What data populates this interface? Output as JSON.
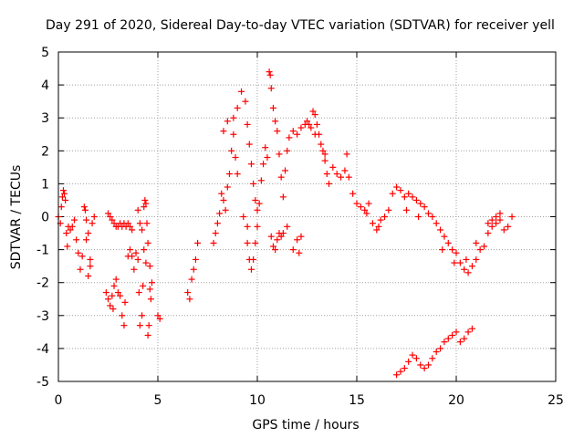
{
  "chart_data": {
    "type": "scatter",
    "title": "Day 291 of 2020, Sidereal Day-to-day VTEC variation (SDTVAR) for receiver yell",
    "xlabel": "GPS time / hours",
    "ylabel": "SDTVAR / TECUs",
    "xlim": [
      0,
      25
    ],
    "ylim": [
      -5,
      5
    ],
    "xticks": [
      0,
      5,
      10,
      15,
      20,
      25
    ],
    "yticks": [
      -5,
      -4,
      -3,
      -2,
      -1,
      0,
      1,
      2,
      3,
      4,
      5
    ],
    "xtick_labels": [
      "0",
      "5",
      "10",
      "15",
      "20",
      "25"
    ],
    "ytick_labels": [
      "-5",
      "-4",
      "-3",
      "-2",
      "-1",
      "0",
      "1",
      "2",
      "3",
      "4",
      "5"
    ],
    "grid": true,
    "marker": "+",
    "series": [
      {
        "name": "SDTVAR",
        "color": "#ff0000",
        "points": [
          [
            0.0,
            0.0
          ],
          [
            0.1,
            -0.2
          ],
          [
            0.15,
            0.3
          ],
          [
            0.2,
            0.6
          ],
          [
            0.25,
            0.8
          ],
          [
            0.3,
            0.7
          ],
          [
            0.35,
            0.5
          ],
          [
            0.4,
            -0.5
          ],
          [
            0.45,
            -0.9
          ],
          [
            0.5,
            -0.3
          ],
          [
            0.6,
            -0.4
          ],
          [
            0.7,
            -0.3
          ],
          [
            0.8,
            -0.1
          ],
          [
            0.9,
            -0.7
          ],
          [
            1.0,
            -1.1
          ],
          [
            1.1,
            -1.6
          ],
          [
            1.2,
            -1.2
          ],
          [
            1.3,
            0.3
          ],
          [
            1.35,
            0.2
          ],
          [
            1.4,
            -0.1
          ],
          [
            1.5,
            -0.5
          ],
          [
            1.6,
            -1.3
          ],
          [
            1.7,
            -0.2
          ],
          [
            1.8,
            0.0
          ],
          [
            2.4,
            -2.3
          ],
          [
            2.5,
            -2.5
          ],
          [
            2.6,
            -2.7
          ],
          [
            2.7,
            -2.4
          ],
          [
            2.75,
            -2.8
          ],
          [
            2.8,
            -2.1
          ],
          [
            2.9,
            -1.9
          ],
          [
            3.0,
            -2.3
          ],
          [
            3.1,
            -2.4
          ],
          [
            3.2,
            -3.0
          ],
          [
            3.3,
            -3.3
          ],
          [
            3.35,
            -2.6
          ],
          [
            2.5,
            0.1
          ],
          [
            2.6,
            0.0
          ],
          [
            2.7,
            -0.1
          ],
          [
            2.8,
            -0.2
          ],
          [
            2.9,
            -0.3
          ],
          [
            3.0,
            -0.3
          ],
          [
            3.1,
            -0.2
          ],
          [
            3.2,
            -0.3
          ],
          [
            3.3,
            -0.2
          ],
          [
            3.4,
            -0.3
          ],
          [
            3.5,
            -0.2
          ],
          [
            3.6,
            -0.3
          ],
          [
            3.7,
            -0.4
          ],
          [
            3.5,
            -1.2
          ],
          [
            3.6,
            -1.0
          ],
          [
            3.7,
            -1.2
          ],
          [
            3.8,
            -1.6
          ],
          [
            3.9,
            -1.1
          ],
          [
            4.0,
            -1.3
          ],
          [
            4.05,
            -2.3
          ],
          [
            4.1,
            -3.3
          ],
          [
            4.2,
            -3.0
          ],
          [
            4.25,
            -2.1
          ],
          [
            4.3,
            0.3
          ],
          [
            4.35,
            0.5
          ],
          [
            4.4,
            0.4
          ],
          [
            4.45,
            -0.2
          ],
          [
            4.5,
            -0.8
          ],
          [
            4.5,
            -3.6
          ],
          [
            4.55,
            -3.3
          ],
          [
            4.6,
            -1.5
          ],
          [
            4.65,
            -2.5
          ],
          [
            4.7,
            -2.0
          ],
          [
            5.0,
            -3.0
          ],
          [
            5.1,
            -3.1
          ],
          [
            6.5,
            -2.3
          ],
          [
            6.6,
            -2.5
          ],
          [
            6.7,
            -1.9
          ],
          [
            6.8,
            -1.6
          ],
          [
            6.9,
            -1.3
          ],
          [
            7.0,
            -0.8
          ],
          [
            7.8,
            -0.8
          ],
          [
            7.9,
            -0.5
          ],
          [
            8.0,
            -0.2
          ],
          [
            8.1,
            0.1
          ],
          [
            8.2,
            0.7
          ],
          [
            8.3,
            0.5
          ],
          [
            8.4,
            0.2
          ],
          [
            8.5,
            0.9
          ],
          [
            8.6,
            1.3
          ],
          [
            8.7,
            2.0
          ],
          [
            8.8,
            2.5
          ],
          [
            8.9,
            1.8
          ],
          [
            9.0,
            1.3
          ],
          [
            8.3,
            2.6
          ],
          [
            8.5,
            2.9
          ],
          [
            8.8,
            3.0
          ],
          [
            9.0,
            3.3
          ],
          [
            9.2,
            3.8
          ],
          [
            9.4,
            3.5
          ],
          [
            9.5,
            2.8
          ],
          [
            9.6,
            2.2
          ],
          [
            9.7,
            1.6
          ],
          [
            9.8,
            1.0
          ],
          [
            9.9,
            0.5
          ],
          [
            10.0,
            0.2
          ],
          [
            9.5,
            -0.8
          ],
          [
            9.6,
            -1.3
          ],
          [
            9.7,
            -1.6
          ],
          [
            9.8,
            -1.3
          ],
          [
            9.9,
            -0.8
          ],
          [
            10.0,
            -0.3
          ],
          [
            10.1,
            0.4
          ],
          [
            10.2,
            1.1
          ],
          [
            10.3,
            1.6
          ],
          [
            10.4,
            2.1
          ],
          [
            10.5,
            1.8
          ],
          [
            10.6,
            4.4
          ],
          [
            10.65,
            4.3
          ],
          [
            10.7,
            3.9
          ],
          [
            10.8,
            3.3
          ],
          [
            10.9,
            2.9
          ],
          [
            11.0,
            2.6
          ],
          [
            11.1,
            1.9
          ],
          [
            11.2,
            1.2
          ],
          [
            11.3,
            0.6
          ],
          [
            11.4,
            1.4
          ],
          [
            11.5,
            2.0
          ],
          [
            10.7,
            -0.6
          ],
          [
            10.8,
            -0.9
          ],
          [
            10.9,
            -1.0
          ],
          [
            11.0,
            -0.7
          ],
          [
            11.1,
            -0.5
          ],
          [
            11.2,
            -0.6
          ],
          [
            11.3,
            -0.5
          ],
          [
            11.5,
            -0.3
          ],
          [
            11.8,
            -1.0
          ],
          [
            12.0,
            -0.7
          ],
          [
            12.2,
            -0.6
          ],
          [
            11.6,
            2.4
          ],
          [
            11.8,
            2.6
          ],
          [
            12.0,
            2.5
          ],
          [
            12.2,
            2.7
          ],
          [
            12.4,
            2.8
          ],
          [
            12.5,
            2.9
          ],
          [
            12.6,
            2.8
          ],
          [
            12.8,
            3.2
          ],
          [
            12.9,
            3.1
          ],
          [
            13.0,
            2.8
          ],
          [
            13.1,
            2.5
          ],
          [
            13.2,
            2.2
          ],
          [
            13.3,
            2.0
          ],
          [
            13.4,
            1.7
          ],
          [
            13.5,
            1.3
          ],
          [
            13.6,
            1.0
          ],
          [
            13.8,
            1.5
          ],
          [
            14.0,
            1.3
          ],
          [
            14.2,
            1.2
          ],
          [
            14.4,
            1.4
          ],
          [
            14.5,
            1.9
          ],
          [
            14.6,
            1.2
          ],
          [
            14.8,
            0.7
          ],
          [
            15.0,
            0.4
          ],
          [
            15.2,
            0.3
          ],
          [
            15.4,
            0.2
          ],
          [
            15.6,
            0.4
          ],
          [
            15.8,
            -0.2
          ],
          [
            16.0,
            -0.4
          ],
          [
            16.2,
            -0.1
          ],
          [
            16.4,
            0.0
          ],
          [
            16.6,
            0.2
          ],
          [
            16.8,
            0.7
          ],
          [
            17.0,
            0.9
          ],
          [
            17.2,
            0.8
          ],
          [
            17.4,
            0.6
          ],
          [
            17.6,
            0.7
          ],
          [
            17.8,
            0.6
          ],
          [
            18.0,
            0.5
          ],
          [
            18.2,
            0.4
          ],
          [
            18.4,
            0.3
          ],
          [
            18.6,
            0.1
          ],
          [
            18.8,
            0.0
          ],
          [
            19.0,
            -0.2
          ],
          [
            19.2,
            -0.4
          ],
          [
            19.4,
            -0.6
          ],
          [
            19.6,
            -0.8
          ],
          [
            19.8,
            -1.0
          ],
          [
            20.0,
            -1.1
          ],
          [
            20.2,
            -1.4
          ],
          [
            20.4,
            -1.6
          ],
          [
            20.6,
            -1.7
          ],
          [
            20.8,
            -1.5
          ],
          [
            21.0,
            -1.3
          ],
          [
            21.2,
            -1.0
          ],
          [
            21.4,
            -0.9
          ],
          [
            21.6,
            -0.5
          ],
          [
            21.8,
            -0.3
          ],
          [
            22.0,
            -0.2
          ],
          [
            22.2,
            -0.1
          ],
          [
            22.4,
            -0.4
          ],
          [
            22.6,
            -0.3
          ],
          [
            22.8,
            0.0
          ],
          [
            21.6,
            -0.2
          ],
          [
            21.8,
            -0.1
          ],
          [
            22.0,
            0.0
          ],
          [
            22.2,
            0.1
          ],
          [
            17.0,
            -4.8
          ],
          [
            17.2,
            -4.7
          ],
          [
            17.4,
            -4.6
          ],
          [
            17.6,
            -4.4
          ],
          [
            17.8,
            -4.2
          ],
          [
            18.0,
            -4.3
          ],
          [
            18.2,
            -4.5
          ],
          [
            18.4,
            -4.6
          ],
          [
            18.6,
            -4.5
          ],
          [
            18.8,
            -4.3
          ],
          [
            19.0,
            -4.1
          ],
          [
            19.2,
            -4.0
          ],
          [
            19.4,
            -3.8
          ],
          [
            19.6,
            -3.7
          ],
          [
            19.8,
            -3.6
          ],
          [
            20.0,
            -3.5
          ],
          [
            20.2,
            -3.8
          ],
          [
            20.4,
            -3.7
          ],
          [
            20.6,
            -3.5
          ],
          [
            20.8,
            -3.4
          ],
          [
            4.0,
            0.2
          ],
          [
            4.1,
            -0.2
          ],
          [
            4.2,
            -0.4
          ],
          [
            4.3,
            -1.0
          ],
          [
            4.4,
            -1.4
          ],
          [
            4.6,
            -2.2
          ],
          [
            1.4,
            -0.7
          ],
          [
            1.5,
            -1.8
          ],
          [
            1.6,
            -1.5
          ],
          [
            9.3,
            0.0
          ],
          [
            9.5,
            -0.3
          ],
          [
            12.1,
            -1.1
          ],
          [
            13.4,
            1.9
          ],
          [
            12.7,
            2.7
          ],
          [
            12.9,
            2.5
          ],
          [
            15.5,
            0.1
          ],
          [
            16.1,
            -0.3
          ],
          [
            17.5,
            0.2
          ],
          [
            18.1,
            0.0
          ],
          [
            19.3,
            -1.0
          ],
          [
            19.9,
            -1.4
          ],
          [
            20.5,
            -1.3
          ],
          [
            21.0,
            -0.8
          ]
        ]
      }
    ]
  }
}
